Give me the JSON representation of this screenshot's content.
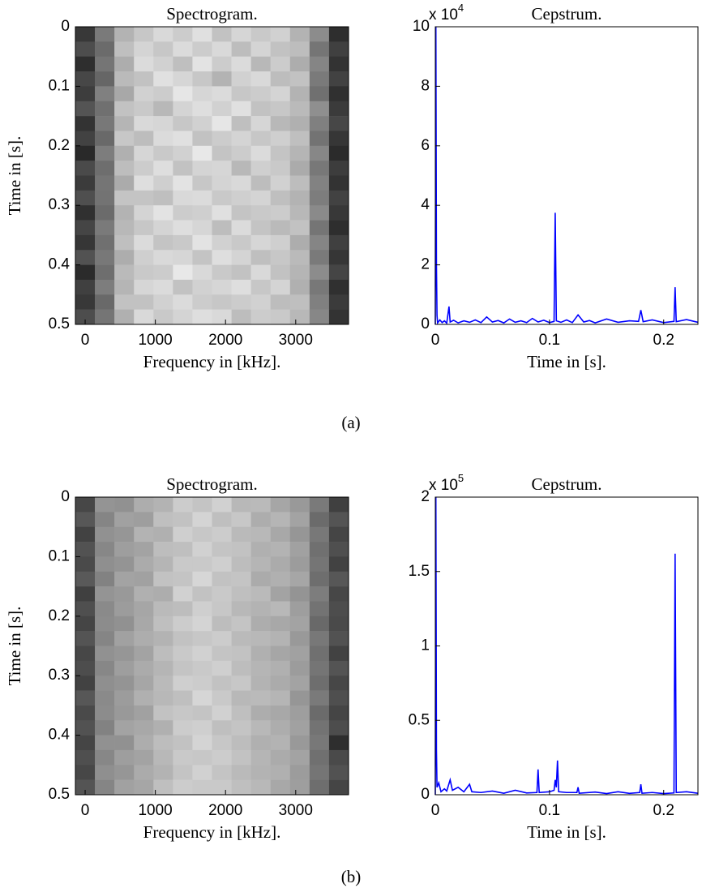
{
  "chart_data": [
    {
      "type": "heatmap",
      "title": "Spectrogram.",
      "xlabel": "Frequency in [kHz].",
      "ylabel": "Time in [s].",
      "xlim": [
        -139,
        3753
      ],
      "ylim": [
        0.5,
        0
      ],
      "xticks": [
        0,
        1000,
        2000,
        3000
      ],
      "yticks": [
        0,
        0.1,
        0.2,
        0.3,
        0.4,
        0.5
      ],
      "xbins": [
        -139,
        139,
        417,
        695,
        973,
        1251,
        1529,
        1807,
        2085,
        2363,
        2641,
        2919,
        3197,
        3475,
        3753
      ],
      "ybins": [
        0,
        0.025,
        0.05,
        0.075,
        0.1,
        0.125,
        0.15,
        0.175,
        0.2,
        0.225,
        0.25,
        0.275,
        0.3,
        0.325,
        0.35,
        0.375,
        0.4,
        0.425,
        0.45,
        0.475,
        0.5
      ],
      "colormap": "gray",
      "values": [
        [
          0.22,
          0.48,
          0.7,
          0.78,
          0.85,
          0.8,
          0.88,
          0.76,
          0.84,
          0.79,
          0.82,
          0.7,
          0.55,
          0.18
        ],
        [
          0.3,
          0.42,
          0.75,
          0.83,
          0.78,
          0.86,
          0.8,
          0.85,
          0.74,
          0.83,
          0.76,
          0.74,
          0.46,
          0.25
        ],
        [
          0.18,
          0.46,
          0.68,
          0.86,
          0.82,
          0.75,
          0.89,
          0.8,
          0.86,
          0.72,
          0.8,
          0.68,
          0.52,
          0.2
        ],
        [
          0.28,
          0.4,
          0.73,
          0.76,
          0.88,
          0.84,
          0.78,
          0.7,
          0.82,
          0.85,
          0.74,
          0.76,
          0.48,
          0.26
        ],
        [
          0.24,
          0.5,
          0.66,
          0.82,
          0.8,
          0.9,
          0.84,
          0.86,
          0.78,
          0.8,
          0.83,
          0.7,
          0.44,
          0.19
        ],
        [
          0.33,
          0.44,
          0.76,
          0.79,
          0.72,
          0.83,
          0.87,
          0.82,
          0.88,
          0.76,
          0.78,
          0.73,
          0.56,
          0.23
        ],
        [
          0.2,
          0.47,
          0.71,
          0.85,
          0.84,
          0.78,
          0.82,
          0.9,
          0.75,
          0.84,
          0.72,
          0.69,
          0.5,
          0.28
        ],
        [
          0.26,
          0.41,
          0.78,
          0.74,
          0.86,
          0.88,
          0.76,
          0.8,
          0.83,
          0.78,
          0.81,
          0.75,
          0.45,
          0.21
        ],
        [
          0.16,
          0.49,
          0.69,
          0.84,
          0.79,
          0.82,
          0.91,
          0.77,
          0.8,
          0.86,
          0.77,
          0.71,
          0.53,
          0.17
        ],
        [
          0.29,
          0.43,
          0.74,
          0.8,
          0.87,
          0.76,
          0.83,
          0.84,
          0.72,
          0.81,
          0.79,
          0.67,
          0.47,
          0.24
        ],
        [
          0.23,
          0.46,
          0.67,
          0.87,
          0.81,
          0.89,
          0.78,
          0.83,
          0.85,
          0.74,
          0.82,
          0.74,
          0.51,
          0.2
        ],
        [
          0.31,
          0.45,
          0.77,
          0.77,
          0.75,
          0.85,
          0.86,
          0.79,
          0.81,
          0.83,
          0.75,
          0.7,
          0.49,
          0.26
        ],
        [
          0.19,
          0.42,
          0.7,
          0.83,
          0.89,
          0.8,
          0.81,
          0.88,
          0.77,
          0.79,
          0.8,
          0.72,
          0.54,
          0.22
        ],
        [
          0.27,
          0.48,
          0.72,
          0.78,
          0.83,
          0.87,
          0.84,
          0.74,
          0.86,
          0.77,
          0.73,
          0.76,
          0.46,
          0.18
        ],
        [
          0.21,
          0.44,
          0.75,
          0.86,
          0.77,
          0.79,
          0.89,
          0.82,
          0.79,
          0.84,
          0.81,
          0.68,
          0.52,
          0.25
        ],
        [
          0.32,
          0.47,
          0.68,
          0.81,
          0.85,
          0.84,
          0.77,
          0.87,
          0.83,
          0.75,
          0.78,
          0.73,
          0.48,
          0.21
        ],
        [
          0.17,
          0.43,
          0.73,
          0.79,
          0.8,
          0.91,
          0.85,
          0.79,
          0.76,
          0.85,
          0.76,
          0.71,
          0.55,
          0.27
        ],
        [
          0.25,
          0.49,
          0.71,
          0.84,
          0.86,
          0.76,
          0.82,
          0.84,
          0.87,
          0.78,
          0.83,
          0.69,
          0.47,
          0.19
        ],
        [
          0.22,
          0.41,
          0.76,
          0.76,
          0.82,
          0.86,
          0.8,
          0.78,
          0.8,
          0.82,
          0.74,
          0.75,
          0.5,
          0.23
        ],
        [
          0.3,
          0.46,
          0.69,
          0.85,
          0.79,
          0.83,
          0.87,
          0.85,
          0.74,
          0.8,
          0.79,
          0.72,
          0.53,
          0.2
        ]
      ]
    },
    {
      "type": "line",
      "title": "Cepstrum.",
      "xlabel": "Time in [s].",
      "y_multiplier": "x 10",
      "y_multiplier_exponent": "4",
      "xlim": [
        0,
        0.23
      ],
      "ylim": [
        0,
        100000
      ],
      "xticks": [
        0,
        0.1,
        0.2
      ],
      "yticks": [
        {
          "value": 0,
          "label": "0"
        },
        {
          "value": 20000,
          "label": "2"
        },
        {
          "value": 40000,
          "label": "4"
        },
        {
          "value": 60000,
          "label": "6"
        },
        {
          "value": 80000,
          "label": "8"
        },
        {
          "value": 100000,
          "label": "10"
        }
      ],
      "x": [
        0,
        0.0005,
        0.001,
        0.0015,
        0.002,
        0.004,
        0.006,
        0.008,
        0.01,
        0.012,
        0.013,
        0.016,
        0.02,
        0.025,
        0.03,
        0.035,
        0.04,
        0.045,
        0.05,
        0.055,
        0.06,
        0.065,
        0.07,
        0.075,
        0.08,
        0.085,
        0.09,
        0.095,
        0.1,
        0.104,
        0.105,
        0.106,
        0.11,
        0.115,
        0.12,
        0.125,
        0.13,
        0.135,
        0.14,
        0.15,
        0.16,
        0.17,
        0.178,
        0.18,
        0.182,
        0.19,
        0.2,
        0.209,
        0.21,
        0.211,
        0.22,
        0.23
      ],
      "series": [
        {
          "color": "#0000ff",
          "values": [
            0,
            100000,
            20000,
            3000,
            500,
            1500,
            600,
            1200,
            400,
            6000,
            800,
            1400,
            500,
            1200,
            700,
            1500,
            600,
            2500,
            800,
            1300,
            500,
            1800,
            700,
            1200,
            600,
            2000,
            800,
            1400,
            600,
            1000,
            37500,
            1200,
            700,
            1500,
            600,
            3200,
            800,
            1300,
            500,
            1800,
            700,
            1200,
            1000,
            4800,
            900,
            1500,
            600,
            1000,
            12500,
            900,
            1600,
            700
          ]
        }
      ]
    },
    {
      "type": "heatmap",
      "title": "Spectrogram.",
      "xlabel": "Frequency in [kHz].",
      "ylabel": "Time in [s].",
      "xlim": [
        -139,
        3753
      ],
      "ylim": [
        0.5,
        0
      ],
      "xticks": [
        0,
        1000,
        2000,
        3000
      ],
      "yticks": [
        0,
        0.1,
        0.2,
        0.3,
        0.4,
        0.5
      ],
      "xbins": [
        -139,
        139,
        417,
        695,
        973,
        1251,
        1529,
        1807,
        2085,
        2363,
        2641,
        2919,
        3197,
        3475,
        3753
      ],
      "ybins": [
        0,
        0.025,
        0.05,
        0.075,
        0.1,
        0.125,
        0.15,
        0.175,
        0.2,
        0.225,
        0.25,
        0.275,
        0.3,
        0.325,
        0.35,
        0.375,
        0.4,
        0.425,
        0.45,
        0.475,
        0.5
      ],
      "colormap": "gray",
      "values": [
        [
          0.28,
          0.58,
          0.57,
          0.68,
          0.7,
          0.8,
          0.77,
          0.82,
          0.72,
          0.73,
          0.65,
          0.6,
          0.48,
          0.25
        ],
        [
          0.34,
          0.52,
          0.63,
          0.62,
          0.75,
          0.76,
          0.83,
          0.75,
          0.78,
          0.68,
          0.71,
          0.64,
          0.42,
          0.33
        ],
        [
          0.26,
          0.57,
          0.59,
          0.7,
          0.69,
          0.81,
          0.78,
          0.8,
          0.73,
          0.72,
          0.66,
          0.59,
          0.47,
          0.27
        ],
        [
          0.32,
          0.53,
          0.62,
          0.64,
          0.74,
          0.75,
          0.82,
          0.77,
          0.76,
          0.69,
          0.7,
          0.63,
          0.44,
          0.31
        ],
        [
          0.29,
          0.56,
          0.58,
          0.67,
          0.71,
          0.79,
          0.79,
          0.81,
          0.74,
          0.71,
          0.67,
          0.61,
          0.46,
          0.26
        ],
        [
          0.35,
          0.51,
          0.64,
          0.63,
          0.76,
          0.77,
          0.84,
          0.76,
          0.77,
          0.67,
          0.69,
          0.65,
          0.43,
          0.34
        ],
        [
          0.25,
          0.58,
          0.6,
          0.69,
          0.68,
          0.82,
          0.76,
          0.79,
          0.75,
          0.73,
          0.64,
          0.58,
          0.49,
          0.28
        ],
        [
          0.31,
          0.54,
          0.61,
          0.65,
          0.73,
          0.74,
          0.81,
          0.78,
          0.72,
          0.7,
          0.72,
          0.62,
          0.45,
          0.3
        ],
        [
          0.27,
          0.55,
          0.57,
          0.66,
          0.75,
          0.8,
          0.83,
          0.74,
          0.77,
          0.68,
          0.66,
          0.64,
          0.41,
          0.29
        ],
        [
          0.33,
          0.52,
          0.63,
          0.68,
          0.7,
          0.76,
          0.78,
          0.8,
          0.73,
          0.72,
          0.7,
          0.6,
          0.47,
          0.32
        ],
        [
          0.28,
          0.57,
          0.59,
          0.64,
          0.74,
          0.79,
          0.82,
          0.77,
          0.76,
          0.69,
          0.65,
          0.63,
          0.44,
          0.26
        ],
        [
          0.3,
          0.53,
          0.62,
          0.67,
          0.71,
          0.77,
          0.79,
          0.81,
          0.74,
          0.71,
          0.69,
          0.61,
          0.46,
          0.33
        ],
        [
          0.26,
          0.56,
          0.58,
          0.65,
          0.73,
          0.81,
          0.8,
          0.76,
          0.78,
          0.7,
          0.67,
          0.64,
          0.43,
          0.28
        ],
        [
          0.34,
          0.54,
          0.61,
          0.69,
          0.72,
          0.75,
          0.84,
          0.79,
          0.72,
          0.73,
          0.71,
          0.59,
          0.48,
          0.31
        ],
        [
          0.29,
          0.55,
          0.6,
          0.63,
          0.76,
          0.78,
          0.77,
          0.82,
          0.75,
          0.68,
          0.66,
          0.62,
          0.42,
          0.27
        ],
        [
          0.32,
          0.51,
          0.64,
          0.66,
          0.69,
          0.8,
          0.81,
          0.75,
          0.77,
          0.72,
          0.68,
          0.63,
          0.45,
          0.3
        ],
        [
          0.27,
          0.57,
          0.57,
          0.68,
          0.74,
          0.76,
          0.83,
          0.78,
          0.74,
          0.69,
          0.7,
          0.6,
          0.47,
          0.18
        ],
        [
          0.31,
          0.53,
          0.62,
          0.64,
          0.72,
          0.79,
          0.78,
          0.8,
          0.76,
          0.71,
          0.67,
          0.64,
          0.44,
          0.29
        ],
        [
          0.28,
          0.56,
          0.59,
          0.67,
          0.7,
          0.77,
          0.82,
          0.77,
          0.73,
          0.7,
          0.69,
          0.61,
          0.46,
          0.32
        ],
        [
          0.33,
          0.52,
          0.63,
          0.65,
          0.75,
          0.8,
          0.79,
          0.79,
          0.75,
          0.72,
          0.66,
          0.62,
          0.43,
          0.27
        ]
      ]
    },
    {
      "type": "line",
      "title": "Cepstrum.",
      "xlabel": "Time in [s].",
      "y_multiplier": "x 10",
      "y_multiplier_exponent": "5",
      "xlim": [
        0,
        0.23
      ],
      "ylim": [
        0,
        200000
      ],
      "xticks": [
        0,
        0.1,
        0.2
      ],
      "yticks": [
        {
          "value": 0,
          "label": "0"
        },
        {
          "value": 50000,
          "label": "0.5"
        },
        {
          "value": 100000,
          "label": "1"
        },
        {
          "value": 150000,
          "label": "1.5"
        },
        {
          "value": 200000,
          "label": "2"
        }
      ],
      "x": [
        0,
        0.0005,
        0.001,
        0.0015,
        0.003,
        0.005,
        0.008,
        0.01,
        0.013,
        0.015,
        0.02,
        0.025,
        0.03,
        0.032,
        0.04,
        0.05,
        0.06,
        0.07,
        0.08,
        0.089,
        0.09,
        0.091,
        0.1,
        0.104,
        0.105,
        0.106,
        0.107,
        0.108,
        0.115,
        0.124,
        0.125,
        0.126,
        0.14,
        0.15,
        0.16,
        0.17,
        0.179,
        0.18,
        0.181,
        0.19,
        0.2,
        0.209,
        0.21,
        0.211,
        0.22,
        0.23
      ],
      "series": [
        {
          "color": "#0000ff",
          "values": [
            0,
            200000,
            30000,
            5000,
            8000,
            2000,
            4000,
            2500,
            10000,
            3000,
            5000,
            2000,
            7000,
            2000,
            1500,
            2500,
            1000,
            3000,
            1200,
            1500,
            17000,
            1500,
            2000,
            3000,
            10000,
            5000,
            23000,
            2000,
            1500,
            1500,
            5000,
            1000,
            1800,
            800,
            2000,
            900,
            1500,
            7000,
            1000,
            1500,
            800,
            1200,
            162000,
            1500,
            2000,
            1000
          ]
        }
      ]
    }
  ],
  "captions": [
    "(a)",
    "(b)"
  ]
}
